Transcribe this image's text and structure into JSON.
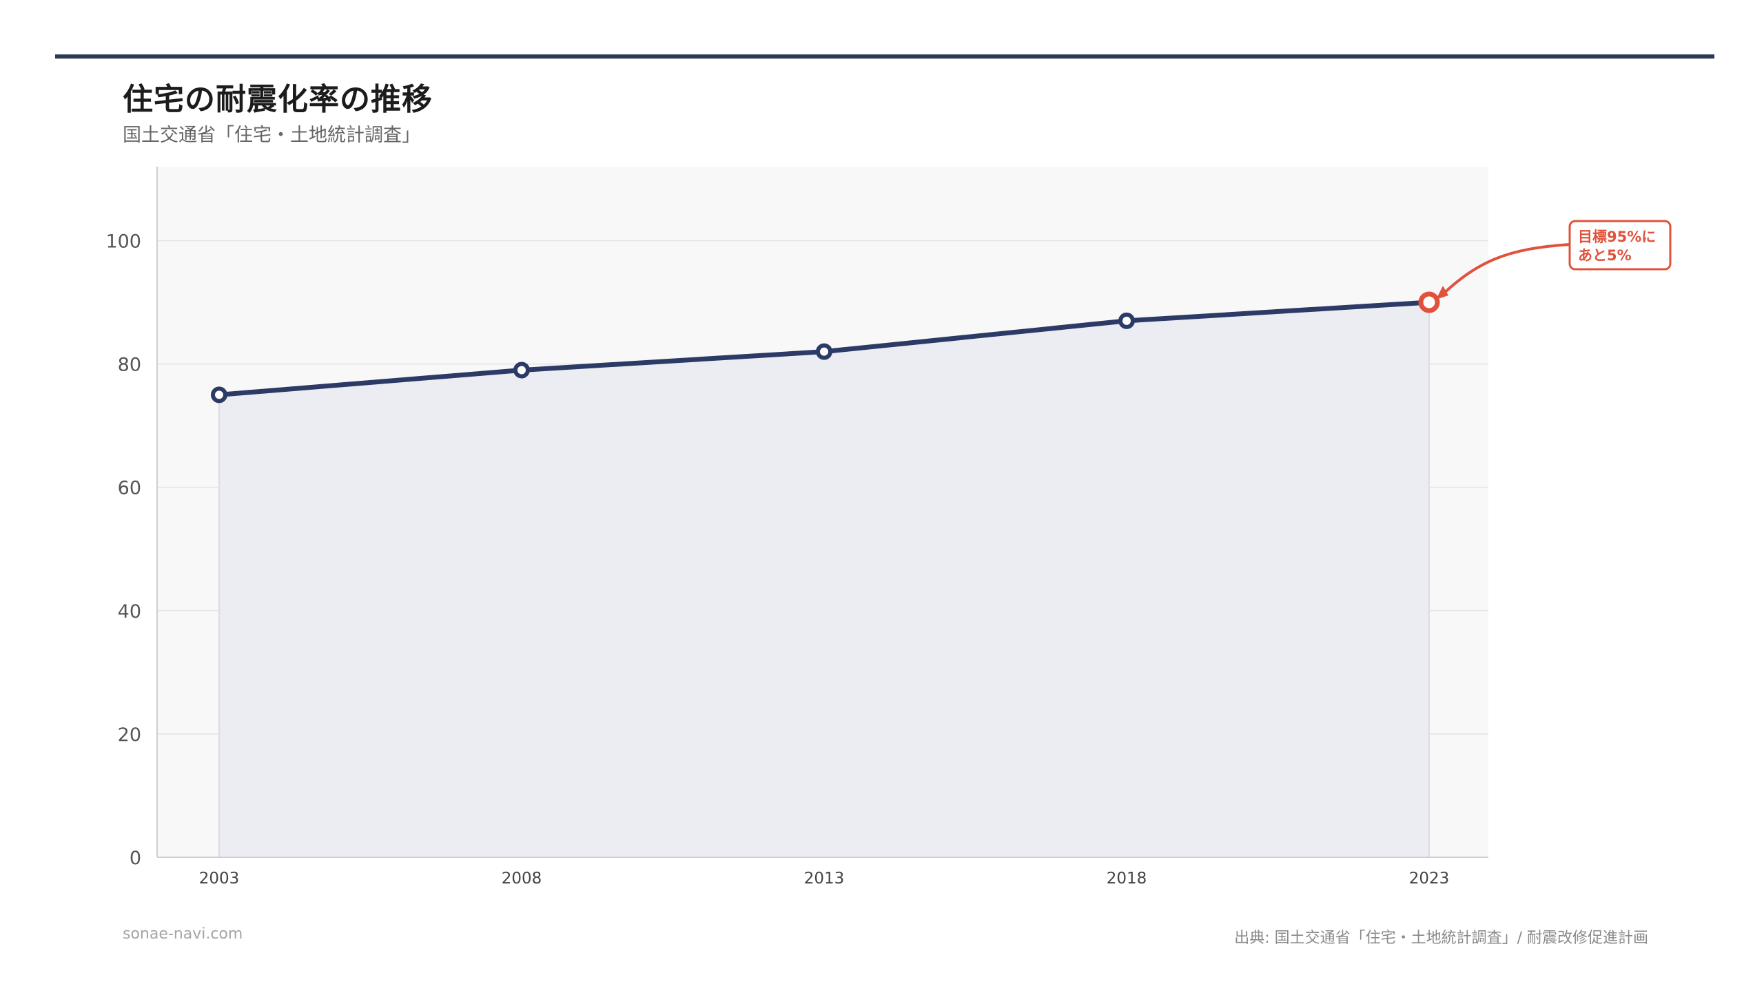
{
  "header": {
    "title": "住宅の耐震化率の推移",
    "subtitle": "国土交通省「住宅・土地統計調査」"
  },
  "footer": {
    "site": "sonae-navi.com",
    "source": "出典: 国土交通省「住宅・土地統計調査」/ 耐震改修促進計画"
  },
  "colors": {
    "line": "#2c3a66",
    "highlight": "#e0523b",
    "area": "#ecedf2",
    "plot_bg": "#f8f8f9",
    "grid": "#e4e4e7",
    "rule": "#2c3a55"
  },
  "chart_data": {
    "type": "area",
    "title": "住宅の耐震化率の推移",
    "subtitle": "国土交通省「住宅・土地統計調査」",
    "xlabel": "",
    "ylabel": "",
    "x": [
      "2003",
      "2008",
      "2013",
      "2018",
      "2023"
    ],
    "series": [
      {
        "values": [
          75,
          79,
          82,
          87,
          90
        ]
      }
    ],
    "ylim": [
      0,
      112
    ],
    "yticks": [
      0,
      20,
      40,
      60,
      80,
      100
    ],
    "grid": true,
    "annotation": {
      "point_index": 4,
      "lines": [
        "目標95%に",
        "あと5%"
      ]
    }
  }
}
